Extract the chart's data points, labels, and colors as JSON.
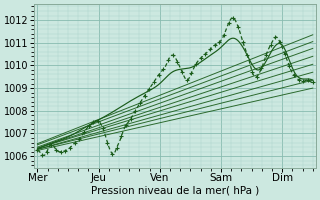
{
  "xlabel": "Pression niveau de la mer( hPa )",
  "days": [
    "Mer",
    "Jeu",
    "Ven",
    "Sam",
    "Dim"
  ],
  "day_positions": [
    0,
    1,
    2,
    3,
    4
  ],
  "ylim": [
    1005.5,
    1012.7
  ],
  "xlim": [
    -0.05,
    4.55
  ],
  "yticks": [
    1006,
    1007,
    1008,
    1009,
    1010,
    1011,
    1012
  ],
  "bg_color": "#cce8e0",
  "grid_color_major": "#88bbb0",
  "grid_color_minor": "#aad4cc",
  "line_color": "#1a5c1a",
  "marker_color": "#1a5c1a",
  "fan_starts": [
    1006.25,
    1006.3,
    1006.3,
    1006.35,
    1006.35,
    1006.4,
    1006.5,
    1006.55
  ],
  "fan_ends": [
    1009.0,
    1009.35,
    1009.7,
    1010.05,
    1010.4,
    1010.75,
    1011.05,
    1011.35
  ],
  "fan_xend": 4.5
}
